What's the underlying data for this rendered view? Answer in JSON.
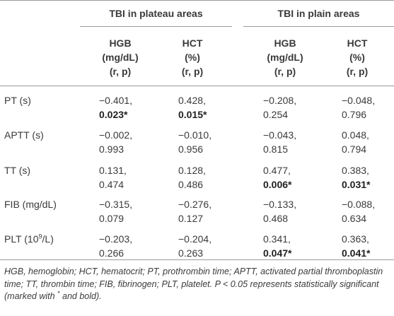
{
  "groups": [
    {
      "label": "TBI in plateau areas"
    },
    {
      "label": "TBI in plain areas"
    }
  ],
  "subheaders": [
    {
      "l1": "HGB",
      "l2": "(mg/dL)",
      "l3": "(r, p)"
    },
    {
      "l1": "HCT",
      "l2": "(%)",
      "l3": "(r, p)"
    },
    {
      "l1": "HGB",
      "l2": "(mg/dL)",
      "l3": "(r, p)"
    },
    {
      "l1": "HCT",
      "l2": "(%)",
      "l3": "(r, p)"
    }
  ],
  "rows": [
    {
      "label": "PT (s)",
      "label_sup": "",
      "label_suffix": "",
      "cells": [
        {
          "r": "−0.401,",
          "p": "0.023*",
          "bold": true
        },
        {
          "r": "0.428,",
          "p": "0.015*",
          "bold": true
        },
        {
          "r": "−0.208,",
          "p": "0.254",
          "bold": false
        },
        {
          "r": "−0.048,",
          "p": "0.796",
          "bold": false
        }
      ]
    },
    {
      "label": "APTT (s)",
      "label_sup": "",
      "label_suffix": "",
      "cells": [
        {
          "r": "−0.002,",
          "p": "0.993",
          "bold": false
        },
        {
          "r": "−0.010,",
          "p": "0.956",
          "bold": false
        },
        {
          "r": "−0.043,",
          "p": "0.815",
          "bold": false
        },
        {
          "r": "0.048,",
          "p": "0.794",
          "bold": false
        }
      ]
    },
    {
      "label": "TT (s)",
      "label_sup": "",
      "label_suffix": "",
      "cells": [
        {
          "r": "0.131,",
          "p": "0.474",
          "bold": false
        },
        {
          "r": "0.128,",
          "p": "0.486",
          "bold": false
        },
        {
          "r": "0.477,",
          "p": "0.006*",
          "bold": true
        },
        {
          "r": "0.383,",
          "p": "0.031*",
          "bold": true
        }
      ]
    },
    {
      "label": "FIB (mg/dL)",
      "label_sup": "",
      "label_suffix": "",
      "cells": [
        {
          "r": "−0.315,",
          "p": "0.079",
          "bold": false
        },
        {
          "r": "−0.276,",
          "p": "0.127",
          "bold": false
        },
        {
          "r": "−0.133,",
          "p": "0.468",
          "bold": false
        },
        {
          "r": "−0.088,",
          "p": "0.634",
          "bold": false
        }
      ]
    },
    {
      "label": "PLT (10",
      "label_sup": "9",
      "label_suffix": "/L)",
      "cells": [
        {
          "r": "−0.203,",
          "p": "0.266",
          "bold": false
        },
        {
          "r": "−0.204,",
          "p": "0.263",
          "bold": false
        },
        {
          "r": "0.341,",
          "p": "0.047*",
          "bold": true
        },
        {
          "r": "0.363,",
          "p": "0.041*",
          "bold": true
        }
      ]
    }
  ],
  "caption": {
    "text1": "HGB, hemoglobin; HCT, hematocrit; PT, prothrombin time; APTT, activated partial thromboplastin time; TT, thrombin time; FIB, fibrinogen; PLT, platelet. P < 0.05 represents statistically significant (marked with ",
    "sup": "*",
    "text2": " and bold)."
  }
}
